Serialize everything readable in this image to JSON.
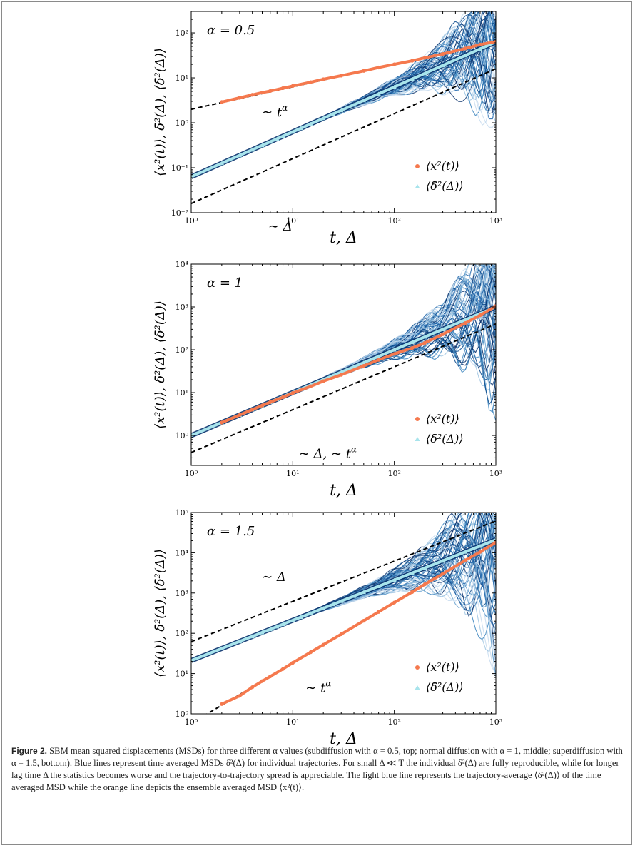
{
  "figure": {
    "caption_label": "Figure 2.",
    "caption_text": "SBM mean squared displacements (MSDs) for three different α values (subdiffusion with α = 0.5, top; normal diffusion with α = 1, middle; superdiffusion with α = 1.5, bottom). Blue lines represent time averaged MSDs δ²(Δ) for individual trajectories. For small Δ ≪ T the individual δ²(Δ) are fully reproducible, while for longer lag time Δ the statistics becomes worse and the trajectory-to-trajectory spread is appreciable. The light blue line represents the trajectory-average ⟨δ²(Δ)⟩ of the time averaged MSD while the orange line depicts the ensemble averaged MSD ⟨x²(t)⟩."
  },
  "colors": {
    "ensemble": "#f5794e",
    "tamsd_mean": "#a8e4ec",
    "trajectories": [
      "#08306b",
      "#0b4a8c",
      "#2166ac",
      "#3f87c0",
      "#6ba3d0",
      "#9dc4e2",
      "#c6dbef"
    ],
    "guide": "#000000"
  },
  "chart_data": [
    {
      "type": "line",
      "scale": "log-log",
      "panel_label": "α = 0.5",
      "xlabel": "t,  Δ",
      "ylabel": "⟨x²(t)⟩, δ̄²(Δ), ⟨δ̄²(Δ)⟩",
      "xlim": [
        1,
        1000
      ],
      "ylim": [
        0.01,
        300
      ],
      "x_ticks": [
        "10⁰",
        "10¹",
        "10²",
        "10³"
      ],
      "y_ticks": [
        "10⁻²",
        "10⁻¹",
        "10⁰",
        "10¹",
        "10²"
      ],
      "y_tick_values": [
        0.01,
        0.1,
        1,
        10,
        100
      ],
      "legend": {
        "position": "lower-right",
        "entries": [
          "⟨x²(t)⟩",
          "⟨δ̄²(Δ)⟩"
        ]
      },
      "guides": [
        {
          "label": "∼ t^α",
          "label_text": "∼ t",
          "label_sup": "α",
          "exponent": 0.5,
          "prefactor": 2.0
        },
        {
          "label": "∼ Δ",
          "label_text": "∼ Δ",
          "label_sup": "",
          "exponent": 1.0,
          "prefactor": 0.016
        }
      ],
      "label_anchor": [
        [
          2.6,
          1.4
        ],
        [
          3.0,
          0.004
        ]
      ],
      "ensemble": {
        "x": [
          2,
          3,
          4,
          5,
          6,
          8,
          10,
          15,
          20,
          30,
          50,
          70,
          100,
          150,
          200,
          300,
          500,
          700,
          1000
        ],
        "y": [
          2.9,
          3.6,
          4.2,
          4.7,
          5.1,
          5.9,
          6.6,
          8.0,
          9.3,
          11.2,
          14.3,
          17.0,
          20.0,
          24.0,
          28.0,
          34.0,
          45.0,
          55.0,
          64.0
        ]
      },
      "tamsd_mean": {
        "exponent": 1.0,
        "prefactor": 0.063
      },
      "trajectory_count": 60,
      "spread_factor": 1.4
    },
    {
      "type": "line",
      "scale": "log-log",
      "panel_label": "α = 1",
      "xlabel": "t,  Δ",
      "ylabel": "⟨x²(t)⟩, δ̄²(Δ), ⟨δ̄²(Δ)⟩",
      "xlim": [
        1,
        1000
      ],
      "ylim": [
        0.2,
        10000
      ],
      "x_ticks": [
        "10⁰",
        "10¹",
        "10²",
        "10³"
      ],
      "y_ticks": [
        "10⁰",
        "10¹",
        "10²",
        "10³",
        "10⁴"
      ],
      "y_tick_values": [
        1,
        10,
        100,
        1000,
        10000
      ],
      "legend": {
        "position": "lower-right",
        "entries": [
          "⟨x²(t)⟩",
          "⟨δ̄²(Δ)⟩"
        ]
      },
      "guides": [
        {
          "label": "∼ Δ,  ∼ t^α",
          "label_text": "∼ Δ,  ∼ t",
          "label_sup": "α",
          "exponent": 1.0,
          "prefactor": 0.4
        }
      ],
      "label_anchor": [
        [
          6.0,
          0.3
        ]
      ],
      "ensemble": {
        "x": [
          2,
          3,
          4,
          5,
          6,
          8,
          10,
          15,
          20,
          30,
          50,
          70,
          100,
          150,
          200,
          300,
          500,
          700,
          1000
        ],
        "y": [
          2.0,
          3.0,
          4.0,
          5.0,
          6.0,
          7.8,
          9.8,
          14.0,
          18.5,
          26.0,
          42.0,
          58.0,
          80.0,
          110.0,
          145.0,
          230.0,
          420.0,
          640.0,
          1050.0
        ]
      },
      "tamsd_mean": {
        "exponent": 1.0,
        "prefactor": 1.0
      },
      "trajectory_count": 60,
      "spread_factor": 1.6
    },
    {
      "type": "line",
      "scale": "log-log",
      "panel_label": "α = 1.5",
      "xlabel": "t,  Δ",
      "ylabel": "⟨x²(t)⟩, δ̄²(Δ), ⟨δ̄²(Δ)⟩",
      "xlim": [
        1,
        1000
      ],
      "ylim": [
        1,
        100000
      ],
      "x_ticks": [
        "10⁰",
        "10¹",
        "10²",
        "10³"
      ],
      "y_ticks": [
        "10⁰",
        "10¹",
        "10²",
        "10³",
        "10⁴",
        "10⁵"
      ],
      "y_tick_values": [
        1,
        10,
        100,
        1000,
        10000,
        100000
      ],
      "legend": {
        "position": "lower-right",
        "entries": [
          "⟨x²(t)⟩",
          "⟨δ̄²(Δ)⟩"
        ]
      },
      "guides": [
        {
          "label": "∼ Δ",
          "label_text": "∼ Δ",
          "label_sup": "",
          "exponent": 1.0,
          "prefactor": 62
        },
        {
          "label": "∼ t^α",
          "label_text": "∼ t",
          "label_sup": "α",
          "exponent": 1.5,
          "prefactor": 0.58
        }
      ],
      "label_anchor": [
        [
          2.6,
          2000
        ],
        [
          7.0,
          3.5
        ]
      ],
      "ensemble": {
        "x": [
          2,
          3,
          4,
          5,
          6,
          8,
          10,
          15,
          20,
          30,
          50,
          70,
          100,
          150,
          200,
          300,
          500,
          700,
          1000
        ],
        "y": [
          1.75,
          2.8,
          4.6,
          6.5,
          8.5,
          13.0,
          18.5,
          34.0,
          52.0,
          95.0,
          205.0,
          340.0,
          580.0,
          1060.0,
          1650.0,
          3000.0,
          6500.0,
          10500.0,
          18000.0
        ]
      },
      "tamsd_mean": {
        "exponent": 1.0,
        "prefactor": 21
      },
      "trajectory_count": 60,
      "spread_factor": 2.0
    }
  ]
}
